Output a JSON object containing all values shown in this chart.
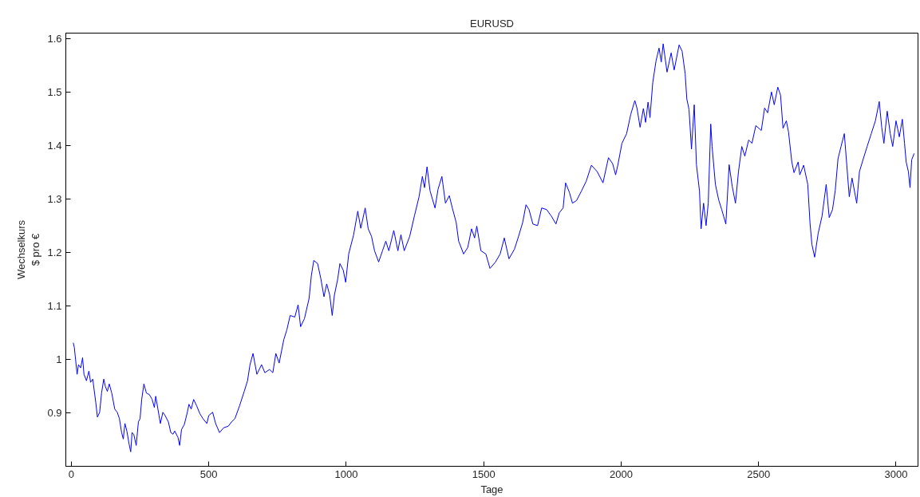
{
  "chart_data": {
    "type": "line",
    "title": "EURUSD",
    "xlabel": "Tage",
    "ylabel": "Wechselkurs\n$ pro €",
    "x": [
      7,
      11,
      21,
      26,
      34,
      41,
      46,
      55,
      64,
      70,
      78,
      89,
      95,
      103,
      110,
      118,
      124,
      131,
      138,
      147,
      158,
      167,
      175,
      183,
      189,
      195,
      202,
      210,
      216,
      221,
      227,
      236,
      244,
      250,
      256,
      264,
      273,
      284,
      294,
      302,
      307,
      319,
      324,
      333,
      341,
      353,
      362,
      370,
      376,
      388,
      394,
      401,
      411,
      422,
      428,
      436,
      445,
      456,
      468,
      479,
      493,
      500,
      514,
      525,
      539,
      554,
      571,
      583,
      595,
      612,
      629,
      641,
      650,
      661,
      675,
      692,
      704,
      721,
      733,
      744,
      756,
      773,
      784,
      796,
      813,
      825,
      834,
      848,
      865,
      873,
      882,
      896,
      908,
      919,
      929,
      940,
      949,
      957,
      969,
      977,
      989,
      998,
      1009,
      1027,
      1042,
      1053,
      1069,
      1080,
      1092,
      1103,
      1118,
      1132,
      1144,
      1155,
      1173,
      1188,
      1199,
      1211,
      1231,
      1248,
      1265,
      1277,
      1285,
      1294,
      1305,
      1323,
      1334,
      1348,
      1361,
      1375,
      1386,
      1400,
      1409,
      1427,
      1442,
      1456,
      1467,
      1475,
      1490,
      1508,
      1523,
      1543,
      1560,
      1575,
      1592,
      1612,
      1627,
      1642,
      1654,
      1665,
      1679,
      1696,
      1711,
      1729,
      1746,
      1763,
      1775,
      1789,
      1798,
      1812,
      1823,
      1838,
      1856,
      1873,
      1892,
      1913,
      1934,
      1954,
      1969,
      1980,
      1988,
      2003,
      2020,
      2035,
      2050,
      2058,
      2069,
      2081,
      2089,
      2098,
      2105,
      2115,
      2127,
      2138,
      2146,
      2153,
      2167,
      2182,
      2193,
      2211,
      2222,
      2233,
      2239,
      2247,
      2256,
      2266,
      2274,
      2285,
      2291,
      2300,
      2309,
      2317,
      2326,
      2331,
      2343,
      2355,
      2366,
      2381,
      2393,
      2404,
      2416,
      2427,
      2439,
      2450,
      2464,
      2476,
      2490,
      2510,
      2522,
      2533,
      2547,
      2557,
      2570,
      2580,
      2589,
      2601,
      2609,
      2621,
      2629,
      2644,
      2650,
      2664,
      2679,
      2687,
      2694,
      2704,
      2717,
      2731,
      2746,
      2757,
      2769,
      2779,
      2789,
      2800,
      2812,
      2821,
      2830,
      2840,
      2857,
      2867,
      2881,
      2895,
      2910,
      2925,
      2939,
      2948,
      2956,
      2968,
      2979,
      2988,
      3000,
      3012,
      3023,
      3031,
      3037,
      3045,
      3051,
      3057,
      3066
    ],
    "series": [
      {
        "color": "#0000ff",
        "values": [
          1.031,
          1.022,
          0.972,
          0.99,
          0.984,
          1.003,
          0.972,
          0.96,
          0.978,
          0.957,
          0.963,
          0.919,
          0.892,
          0.901,
          0.937,
          0.963,
          0.949,
          0.94,
          0.954,
          0.937,
          0.907,
          0.901,
          0.889,
          0.863,
          0.851,
          0.88,
          0.866,
          0.842,
          0.827,
          0.863,
          0.86,
          0.839,
          0.883,
          0.889,
          0.925,
          0.954,
          0.937,
          0.934,
          0.925,
          0.91,
          0.931,
          0.895,
          0.88,
          0.901,
          0.895,
          0.883,
          0.863,
          0.86,
          0.866,
          0.854,
          0.839,
          0.869,
          0.878,
          0.901,
          0.916,
          0.907,
          0.925,
          0.913,
          0.898,
          0.889,
          0.88,
          0.895,
          0.901,
          0.88,
          0.863,
          0.872,
          0.875,
          0.883,
          0.889,
          0.913,
          0.94,
          0.96,
          0.99,
          1.011,
          0.972,
          0.99,
          0.975,
          0.981,
          0.975,
          1.011,
          0.993,
          1.037,
          1.055,
          1.082,
          1.079,
          1.102,
          1.061,
          1.076,
          1.114,
          1.156,
          1.185,
          1.179,
          1.15,
          1.117,
          1.141,
          1.12,
          1.082,
          1.12,
          1.15,
          1.179,
          1.167,
          1.144,
          1.197,
          1.233,
          1.277,
          1.245,
          1.283,
          1.244,
          1.23,
          1.203,
          1.182,
          1.203,
          1.221,
          1.203,
          1.241,
          1.203,
          1.233,
          1.203,
          1.23,
          1.268,
          1.304,
          1.342,
          1.321,
          1.36,
          1.315,
          1.283,
          1.318,
          1.342,
          1.292,
          1.306,
          1.283,
          1.256,
          1.221,
          1.197,
          1.209,
          1.244,
          1.227,
          1.249,
          1.203,
          1.197,
          1.17,
          1.182,
          1.197,
          1.227,
          1.188,
          1.206,
          1.23,
          1.256,
          1.289,
          1.28,
          1.253,
          1.25,
          1.283,
          1.28,
          1.268,
          1.253,
          1.274,
          1.283,
          1.33,
          1.312,
          1.292,
          1.297,
          1.315,
          1.333,
          1.363,
          1.351,
          1.33,
          1.377,
          1.366,
          1.345,
          1.363,
          1.404,
          1.422,
          1.458,
          1.484,
          1.469,
          1.434,
          1.469,
          1.443,
          1.481,
          1.452,
          1.517,
          1.558,
          1.582,
          1.556,
          1.59,
          1.537,
          1.573,
          1.541,
          1.588,
          1.576,
          1.534,
          1.487,
          1.467,
          1.393,
          1.476,
          1.364,
          1.315,
          1.244,
          1.292,
          1.25,
          1.292,
          1.44,
          1.398,
          1.327,
          1.298,
          1.28,
          1.253,
          1.364,
          1.324,
          1.292,
          1.351,
          1.398,
          1.38,
          1.41,
          1.404,
          1.437,
          1.428,
          1.47,
          1.461,
          1.5,
          1.476,
          1.509,
          1.494,
          1.432,
          1.446,
          1.425,
          1.369,
          1.349,
          1.369,
          1.345,
          1.363,
          1.327,
          1.256,
          1.215,
          1.191,
          1.236,
          1.268,
          1.327,
          1.265,
          1.28,
          1.316,
          1.375,
          1.398,
          1.422,
          1.363,
          1.304,
          1.339,
          1.292,
          1.351,
          1.375,
          1.398,
          1.422,
          1.446,
          1.482,
          1.434,
          1.404,
          1.464,
          1.422,
          1.398,
          1.446,
          1.416,
          1.449,
          1.404,
          1.369,
          1.351,
          1.321,
          1.373,
          1.385
        ]
      }
    ],
    "xlim": [
      -20,
      3080
    ],
    "ylim": [
      0.8,
      1.61
    ],
    "xticks": [
      0,
      500,
      1000,
      1500,
      2000,
      2500,
      3000
    ],
    "yticks": [
      0.9,
      1,
      1.1,
      1.2,
      1.3,
      1.4,
      1.5,
      1.6
    ],
    "marker": "none",
    "line_style": "solid"
  }
}
